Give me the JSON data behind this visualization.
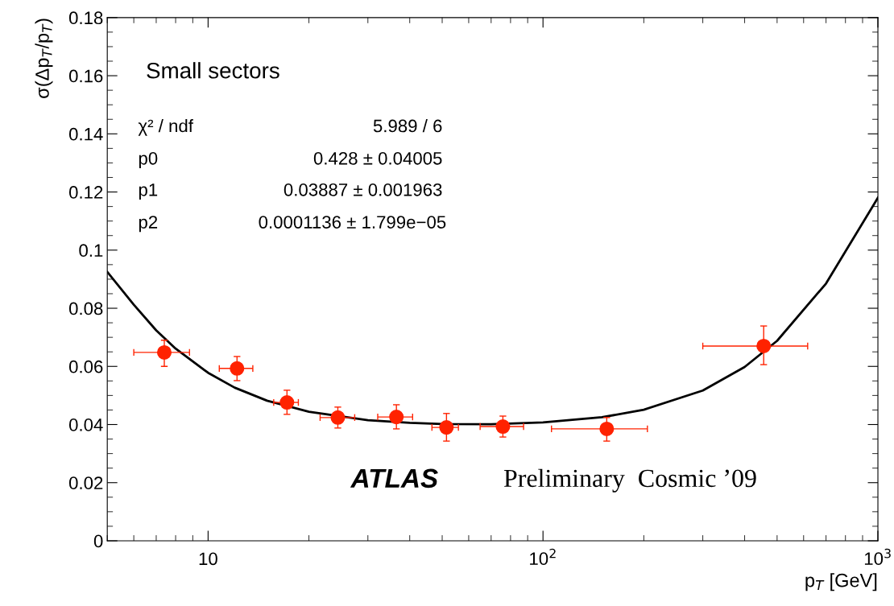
{
  "chart_data": {
    "type": "scatter",
    "xlabel": "p$_{T}$ [GeV]",
    "ylabel": "σ(Δp$_{T}$/p$_{T}$)",
    "log": "x",
    "xlim": [
      5,
      1000
    ],
    "xticks": [
      10,
      {
        "value": 100,
        "label": "10$^{2}$"
      },
      {
        "value": 1000,
        "label": "10$^{3}$"
      }
    ],
    "ylim": [
      0,
      0.18
    ],
    "yticks": [
      0,
      0.02,
      0.04,
      0.06,
      0.08,
      0.1,
      0.12,
      0.14,
      0.16,
      0.18
    ],
    "grid": false,
    "legend": false,
    "marker": "circle",
    "series": [
      {
        "type": "scatter",
        "color": "#ff2200",
        "x": [
          7.4,
          12.2,
          17.2,
          24.4,
          36.5,
          51.5,
          75.9,
          155,
          456
        ],
        "values": [
          0.0648,
          0.0593,
          0.0476,
          0.0424,
          0.0426,
          0.039,
          0.0393,
          0.0385,
          0.067
        ],
        "errors": [
          [
            0.06,
            0.069
          ],
          [
            0.0551,
            0.0634
          ],
          [
            0.0435,
            0.0518
          ],
          [
            0.0388,
            0.046
          ],
          [
            0.0385,
            0.0468
          ],
          [
            0.0343,
            0.0438
          ],
          [
            0.0357,
            0.0429
          ],
          [
            0.0343,
            0.0424
          ],
          [
            0.0606,
            0.0739
          ]
        ],
        "xerrors": [
          [
            6.0,
            8.8
          ],
          [
            10.8,
            13.6
          ],
          [
            15.7,
            18.6
          ],
          [
            21.6,
            27.4
          ],
          [
            32.1,
            40.8
          ],
          [
            46.6,
            55.9
          ],
          [
            64.9,
            87.5
          ],
          [
            106,
            205
          ],
          [
            300,
            617
          ]
        ]
      },
      {
        "type": "line",
        "color": "#000000",
        "line_style": "solid",
        "marker": "none",
        "x": [
          5,
          6,
          7,
          8,
          10,
          12,
          15,
          20,
          30,
          40,
          50,
          70,
          100,
          150,
          200,
          300,
          400,
          500,
          700,
          1000
        ],
        "values": [
          0.0925,
          0.0812,
          0.0724,
          0.0661,
          0.0578,
          0.0527,
          0.0482,
          0.0444,
          0.0415,
          0.0406,
          0.0402,
          0.0401,
          0.0407,
          0.0425,
          0.0451,
          0.0517,
          0.0598,
          0.0688,
          0.0885,
          0.118
        ]
      }
    ],
    "annotations": [
      "Small sectors",
      "χ² / ndf",
      "5.989 / 6",
      "p0",
      "0.428 ± 0.04005",
      "p1",
      "0.03887 ± 0.001963",
      "p2",
      "0.0001136 ± 1.799e−05",
      "ATLAS",
      "Preliminary  Cosmic ’09"
    ]
  }
}
